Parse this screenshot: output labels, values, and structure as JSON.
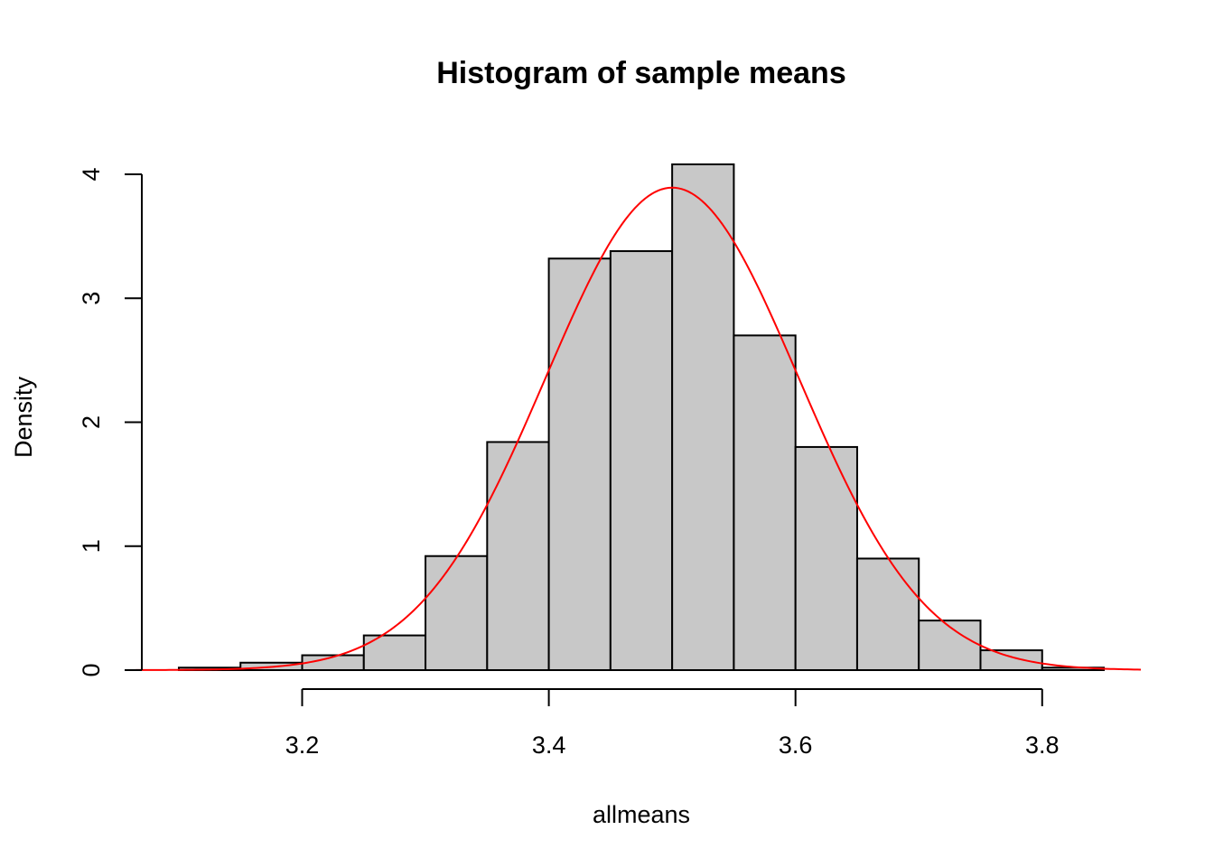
{
  "chart_data": {
    "type": "bar",
    "title": "Histogram of sample means",
    "xlabel": "allmeans",
    "ylabel": "Density",
    "bin_edges": [
      3.1,
      3.15,
      3.2,
      3.25,
      3.3,
      3.35,
      3.4,
      3.45,
      3.5,
      3.55,
      3.6,
      3.65,
      3.7,
      3.75,
      3.8,
      3.85
    ],
    "values": [
      0.02,
      0.06,
      0.12,
      0.28,
      0.92,
      1.84,
      3.32,
      3.38,
      4.08,
      2.7,
      1.8,
      0.9,
      0.4,
      0.16,
      0.02
    ],
    "x_ticks": [
      3.2,
      3.4,
      3.6,
      3.8
    ],
    "x_tick_labels": [
      "3.2",
      "3.4",
      "3.6",
      "3.8"
    ],
    "y_ticks": [
      0,
      1,
      2,
      3,
      4
    ],
    "y_tick_labels": [
      "0",
      "1",
      "2",
      "3",
      "4"
    ],
    "xlim": [
      3.07,
      3.88
    ],
    "ylim": [
      0,
      4.16
    ],
    "grid": false,
    "legend": "none",
    "density_curve": {
      "distribution": "normal",
      "mean": 3.5,
      "sd": 0.1025,
      "x_range": [
        3.065,
        3.88
      ],
      "color": "#ff0000"
    },
    "bar_color": "#c8c8c8"
  }
}
